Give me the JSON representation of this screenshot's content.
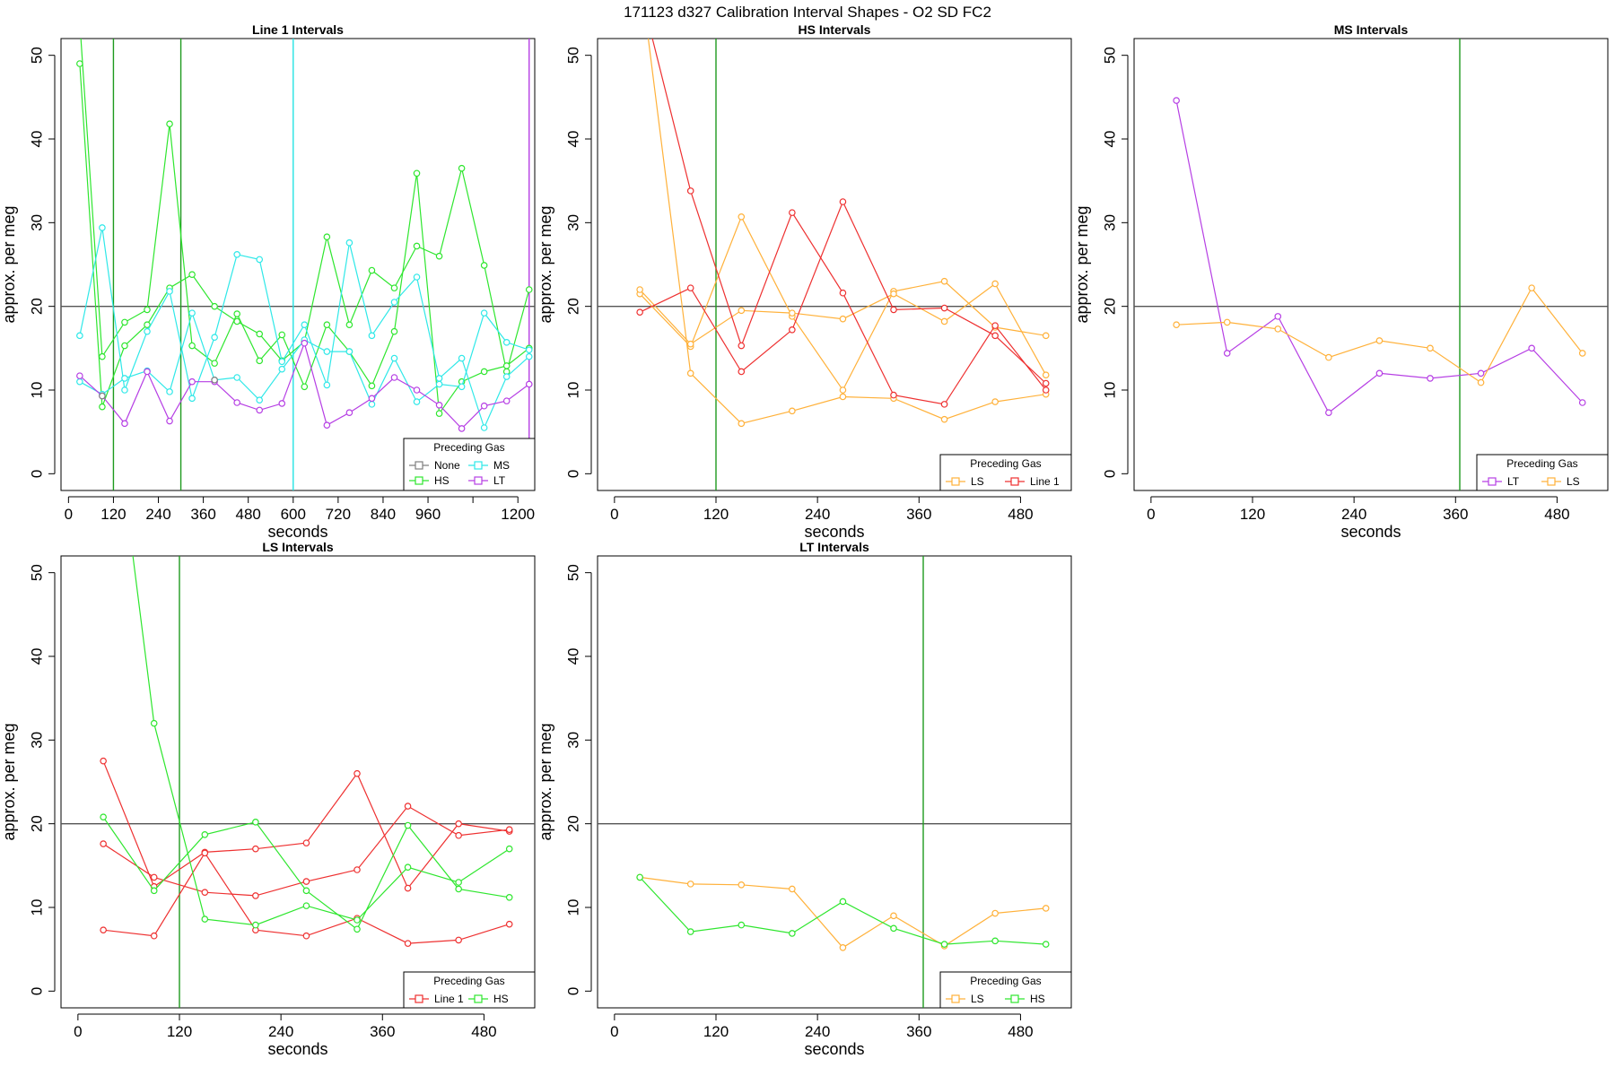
{
  "figure": {
    "title": "171123   d327   Calibration Interval Shapes - O2 SD FC2",
    "ref_line": 20,
    "ref_color": "#555555"
  },
  "colors": {
    "None": "#7f7f7f",
    "HS": "#2ee62e",
    "MS": "#2fe8e8",
    "LT": "#b63fe4",
    "LS": "#ffb13a",
    "Line 1": "#ee3030",
    "vline_green": "#1e9a1e",
    "vline_cyan": "#25e3e3",
    "vline_purple": "#b63fe4"
  },
  "chart_data": [
    {
      "type": "line",
      "title": "Line 1 Intervals",
      "xlabel": "seconds",
      "ylabel": "approx. per meg",
      "xlim": [
        -20,
        1245
      ],
      "ylim": [
        -2,
        52
      ],
      "xticks": [
        0,
        120,
        240,
        360,
        480,
        600,
        720,
        840,
        960,
        1080,
        1200
      ],
      "xtick_labels": [
        "0",
        "120",
        "240",
        "360",
        "480",
        "600",
        "720",
        "840",
        "960",
        "",
        "1200"
      ],
      "yticks": [
        0,
        10,
        20,
        30,
        40,
        50
      ],
      "vlines": [
        {
          "x": 120,
          "color_key": "vline_green"
        },
        {
          "x": 300,
          "color_key": "vline_green"
        },
        {
          "x": 600,
          "color_key": "vline_cyan"
        },
        {
          "x": 1230,
          "color_key": "vline_purple"
        }
      ],
      "legend": {
        "title": "Preceding Gas",
        "position": "bottom-right",
        "columns": 2,
        "entries": [
          "None",
          "MS",
          "HS",
          "LT"
        ]
      },
      "series": [
        {
          "name": "HS",
          "x": [
            30,
            90,
            150,
            210,
            270,
            330,
            390,
            450,
            510,
            570,
            630,
            690,
            750,
            810,
            870,
            930,
            990,
            1050,
            1110,
            1170,
            1230
          ],
          "y": [
            49,
            8,
            15.3,
            17.8,
            22.2,
            23.8,
            20,
            18.2,
            16.7,
            13.5,
            15.8,
            28.3,
            17.8,
            24.3,
            22.2,
            27.2,
            26,
            36.5,
            24.9,
            12.2,
            22
          ]
        },
        {
          "name": "HS",
          "x": [
            30,
            90,
            150,
            210,
            270,
            330,
            390,
            450,
            510,
            570,
            630,
            690,
            750,
            810,
            870,
            930,
            990,
            1050,
            1110,
            1170,
            1230
          ],
          "y": [
            54,
            14,
            18.1,
            19.6,
            41.8,
            15.3,
            13.2,
            19.1,
            13.5,
            16.6,
            10.4,
            17.8,
            14.6,
            10.5,
            17,
            35.9,
            7.2,
            11,
            12.2,
            12.9,
            15
          ]
        },
        {
          "name": "MS",
          "x": [
            30,
            90,
            150,
            210,
            270,
            330,
            390,
            450,
            510,
            570,
            630,
            690,
            750,
            810,
            870,
            930,
            990,
            1050,
            1110,
            1170,
            1230
          ],
          "y": [
            16.5,
            29.4,
            10,
            17,
            21.8,
            9,
            16.3,
            26.2,
            25.6,
            13.4,
            17.8,
            10.6,
            27.6,
            16.5,
            20.5,
            23.5,
            11.4,
            13.8,
            5.5,
            11.6,
            14
          ]
        },
        {
          "name": "MS",
          "x": [
            30,
            90,
            150,
            210,
            270,
            330,
            390,
            450,
            510,
            570,
            630,
            690,
            750,
            810,
            870,
            930,
            990,
            1050,
            1110,
            1170,
            1230
          ],
          "y": [
            11,
            9.5,
            11.4,
            12.3,
            9.8,
            19.2,
            11.2,
            11.5,
            8.8,
            12.5,
            16,
            14.6,
            14.6,
            8.3,
            13.8,
            8.6,
            10.7,
            10.4,
            19.2,
            15.7,
            14.8
          ]
        },
        {
          "name": "LT",
          "x": [
            30,
            90,
            150,
            210,
            270,
            330,
            390,
            450,
            510,
            570,
            630,
            690,
            750,
            810,
            870,
            930,
            990,
            1050,
            1110,
            1170,
            1230
          ],
          "y": [
            11.7,
            9.3,
            6,
            12.2,
            6.3,
            11,
            11,
            8.5,
            7.6,
            8.4,
            15.6,
            5.8,
            7.3,
            9,
            11.5,
            10,
            8.2,
            5.4,
            8.1,
            8.7,
            10.7
          ]
        },
        {
          "name": "None",
          "x": [
            90,
            390
          ],
          "y": [
            9.3,
            11.2
          ],
          "markers_only": true
        }
      ]
    },
    {
      "type": "line",
      "title": "HS Intervals",
      "xlabel": "seconds",
      "ylabel": "approx. per meg",
      "xlim": [
        -20,
        540
      ],
      "ylim": [
        -2,
        52
      ],
      "xticks": [
        0,
        120,
        240,
        360,
        480
      ],
      "xtick_labels": [
        "0",
        "120",
        "240",
        "360",
        "480"
      ],
      "yticks": [
        0,
        10,
        20,
        30,
        40,
        50
      ],
      "vlines": [
        {
          "x": 120,
          "color_key": "vline_green"
        }
      ],
      "legend": {
        "title": "Preceding Gas",
        "position": "bottom-right",
        "columns": 2,
        "entries": [
          "LS",
          "Line 1"
        ]
      },
      "series": [
        {
          "name": "LS",
          "x": [
            30,
            90,
            150,
            210,
            270,
            330,
            390,
            450,
            510
          ],
          "y": [
            60,
            12,
            6,
            7.5,
            9.2,
            9,
            6.5,
            8.6,
            9.5
          ]
        },
        {
          "name": "LS",
          "x": [
            30,
            90,
            150,
            210,
            270,
            330,
            390,
            450,
            510
          ],
          "y": [
            21.5,
            15.2,
            30.7,
            18.8,
            10,
            21.8,
            23,
            17.5,
            16.5
          ]
        },
        {
          "name": "LS",
          "x": [
            30,
            90,
            150,
            210,
            270,
            330,
            390,
            450,
            510
          ],
          "y": [
            22,
            15.5,
            19.5,
            19.2,
            18.5,
            21.5,
            18.2,
            22.7,
            11.8
          ]
        },
        {
          "name": "Line 1",
          "x": [
            30,
            90,
            150,
            210,
            270,
            330,
            390,
            450,
            510
          ],
          "y": [
            19.3,
            22.2,
            12.2,
            17.2,
            32.5,
            19.6,
            19.8,
            16.5,
            10.8
          ]
        },
        {
          "name": "Line 1",
          "x": [
            30,
            90,
            150,
            210,
            270,
            330,
            390,
            450,
            510
          ],
          "y": [
            58,
            33.8,
            15.3,
            31.2,
            21.6,
            9.4,
            8.3,
            17.7,
            10
          ]
        }
      ]
    },
    {
      "type": "line",
      "title": "MS Intervals",
      "xlabel": "seconds",
      "ylabel": "approx. per meg",
      "xlim": [
        -20,
        540
      ],
      "ylim": [
        -2,
        52
      ],
      "xticks": [
        0,
        120,
        240,
        360,
        480
      ],
      "xtick_labels": [
        "0",
        "120",
        "240",
        "360",
        "480"
      ],
      "yticks": [
        0,
        10,
        20,
        30,
        40,
        50
      ],
      "vlines": [
        {
          "x": 365,
          "color_key": "vline_green"
        }
      ],
      "legend": {
        "title": "Preceding Gas",
        "position": "bottom-right",
        "columns": 2,
        "entries": [
          "LT",
          "LS"
        ]
      },
      "series": [
        {
          "name": "LT",
          "x": [
            30,
            90,
            150,
            210,
            270,
            330,
            390,
            450,
            510
          ],
          "y": [
            44.6,
            14.4,
            18.8,
            7.3,
            12,
            11.4,
            12,
            15,
            8.5
          ]
        },
        {
          "name": "LS",
          "x": [
            30,
            90,
            150,
            210,
            270,
            330,
            390,
            450,
            510
          ],
          "y": [
            17.8,
            18.1,
            17.3,
            13.9,
            15.9,
            15,
            10.9,
            22.2,
            14.4
          ]
        }
      ]
    },
    {
      "type": "line",
      "title": "LS Intervals",
      "xlabel": "seconds",
      "ylabel": "approx. per meg",
      "xlim": [
        -20,
        540
      ],
      "ylim": [
        -2,
        52
      ],
      "xticks": [
        0,
        120,
        240,
        360,
        480
      ],
      "xtick_labels": [
        "0",
        "120",
        "240",
        "360",
        "480"
      ],
      "yticks": [
        0,
        10,
        20,
        30,
        40,
        50
      ],
      "vlines": [
        {
          "x": 120,
          "color_key": "vline_green"
        }
      ],
      "legend": {
        "title": "Preceding Gas",
        "position": "bottom-right",
        "columns": 2,
        "entries": [
          "Line 1",
          "HS"
        ]
      },
      "series": [
        {
          "name": "Line 1",
          "x": [
            30,
            90,
            150,
            210,
            270,
            330,
            390,
            450,
            510
          ],
          "y": [
            27.5,
            12.5,
            16.6,
            17,
            17.7,
            26,
            12.3,
            20,
            19.1
          ]
        },
        {
          "name": "Line 1",
          "x": [
            30,
            90,
            150,
            210,
            270,
            330,
            390,
            450,
            510
          ],
          "y": [
            17.6,
            13.6,
            11.8,
            11.4,
            13.1,
            14.5,
            22.1,
            18.6,
            19.3
          ]
        },
        {
          "name": "Line 1",
          "x": [
            30,
            90,
            150,
            210,
            270,
            330,
            390,
            450,
            510
          ],
          "y": [
            7.3,
            6.6,
            16.5,
            7.3,
            6.6,
            8.7,
            5.7,
            6.1,
            8
          ]
        },
        {
          "name": "HS",
          "x": [
            30,
            90,
            150,
            210,
            270,
            330,
            390,
            450,
            510
          ],
          "y": [
            20.8,
            12,
            18.7,
            20.2,
            12,
            7.4,
            19.8,
            12.2,
            11.2
          ]
        },
        {
          "name": "HS",
          "x": [
            30,
            90,
            150,
            210,
            270,
            330,
            390,
            450,
            510
          ],
          "y": [
            80,
            32,
            8.6,
            7.9,
            10.2,
            8.5,
            14.8,
            13,
            17
          ]
        }
      ]
    },
    {
      "type": "line",
      "title": "LT Intervals",
      "xlabel": "seconds",
      "ylabel": "approx. per meg",
      "xlim": [
        -20,
        540
      ],
      "ylim": [
        -2,
        52
      ],
      "xticks": [
        0,
        120,
        240,
        360,
        480
      ],
      "xtick_labels": [
        "0",
        "120",
        "240",
        "360",
        "480"
      ],
      "yticks": [
        0,
        10,
        20,
        30,
        40,
        50
      ],
      "vlines": [
        {
          "x": 365,
          "color_key": "vline_green"
        }
      ],
      "legend": {
        "title": "Preceding Gas",
        "position": "bottom-right",
        "columns": 2,
        "entries": [
          "LS",
          "HS"
        ]
      },
      "series": [
        {
          "name": "LS",
          "x": [
            30,
            90,
            150,
            210,
            270,
            330,
            390,
            450,
            510
          ],
          "y": [
            13.6,
            12.8,
            12.7,
            12.2,
            5.2,
            9,
            5.4,
            9.3,
            9.9
          ]
        },
        {
          "name": "HS",
          "x": [
            30,
            90,
            150,
            210,
            270,
            330,
            390,
            450,
            510
          ],
          "y": [
            13.6,
            7.1,
            7.9,
            6.9,
            10.7,
            7.5,
            5.6,
            6,
            5.6
          ]
        }
      ]
    }
  ]
}
